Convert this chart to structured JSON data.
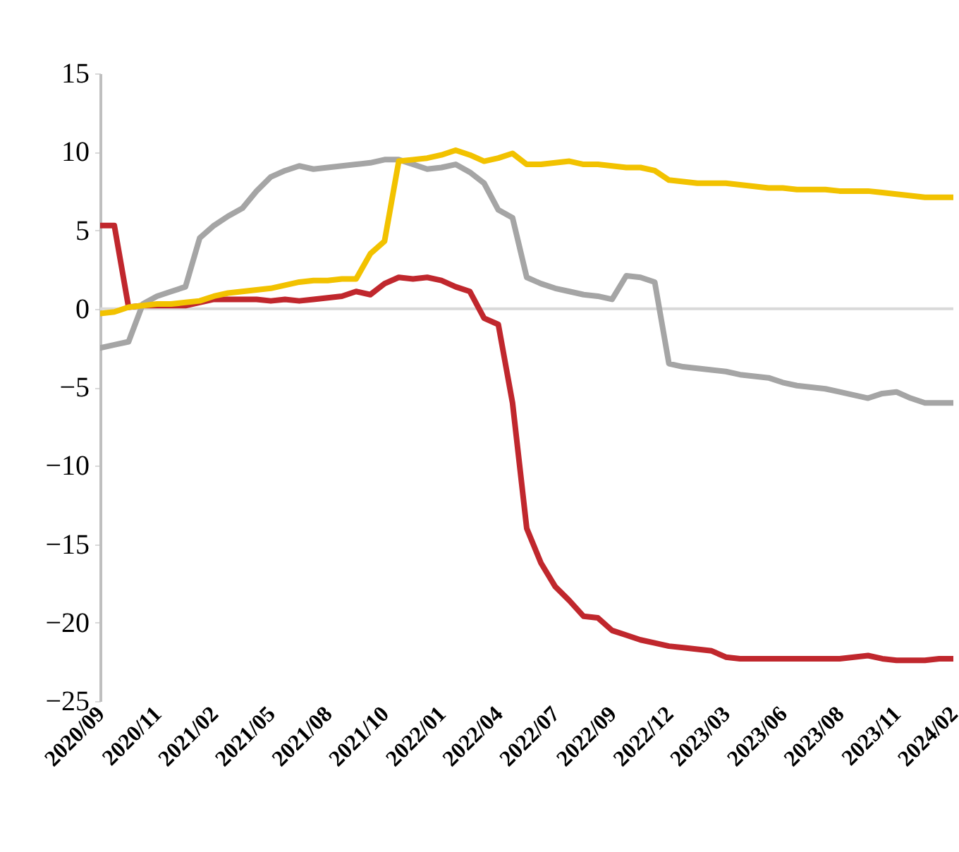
{
  "chart_data": {
    "type": "line",
    "categories": [
      "2020/09",
      null,
      null,
      null,
      "2020/11",
      null,
      null,
      null,
      "2021/02",
      null,
      null,
      null,
      "2021/05",
      null,
      null,
      null,
      "2021/08",
      null,
      null,
      null,
      "2021/10",
      null,
      null,
      null,
      "2022/01",
      null,
      null,
      null,
      "2022/04",
      null,
      null,
      null,
      "2022/07",
      null,
      null,
      null,
      "2022/09",
      null,
      null,
      null,
      "2022/12",
      null,
      null,
      null,
      "2023/03",
      null,
      null,
      null,
      "2023/06",
      null,
      null,
      null,
      "2023/08",
      null,
      null,
      null,
      "2023/11",
      null,
      null,
      null,
      "2024/02"
    ],
    "series": [
      {
        "color": "#c0272d",
        "values": [
          5.3,
          5.3,
          0.1,
          0.2,
          0.2,
          0.2,
          0.2,
          0.4,
          0.6,
          0.6,
          0.6,
          0.6,
          0.5,
          0.6,
          0.5,
          0.6,
          0.7,
          0.8,
          1.1,
          0.9,
          1.6,
          2.0,
          1.9,
          2.0,
          1.8,
          1.4,
          1.1,
          -0.6,
          -1.0,
          -6.0,
          -14.0,
          -16.2,
          -17.7,
          -18.6,
          -19.6,
          -19.7,
          -20.5,
          -20.8,
          -21.1,
          -21.3,
          -21.5,
          -21.6,
          -21.7,
          -21.8,
          -22.2,
          -22.3,
          -22.3,
          -22.3,
          -22.3,
          -22.3,
          -22.3,
          -22.3,
          -22.3,
          -22.2,
          -22.1,
          -22.3,
          -22.4,
          -22.4,
          -22.4,
          -22.3,
          -22.3
        ]
      },
      {
        "color": "#a5a5a5",
        "values": [
          -2.5,
          -2.3,
          -2.1,
          0.3,
          0.8,
          1.1,
          1.4,
          4.5,
          5.3,
          5.9,
          6.4,
          7.5,
          8.4,
          8.8,
          9.1,
          8.9,
          9.0,
          9.1,
          9.2,
          9.3,
          9.5,
          9.5,
          9.2,
          8.9,
          9.0,
          9.2,
          8.7,
          8.0,
          6.3,
          5.8,
          2.0,
          1.6,
          1.3,
          1.1,
          0.9,
          0.8,
          0.6,
          2.1,
          2.0,
          1.7,
          -3.5,
          -3.7,
          -3.8,
          -3.9,
          -4.0,
          -4.2,
          -4.3,
          -4.4,
          -4.7,
          -4.9,
          -5.0,
          -5.1,
          -5.3,
          -5.5,
          -5.7,
          -5.4,
          -5.3,
          -5.7,
          -6.0,
          -6.0,
          -6.0
        ]
      },
      {
        "color": "#f2c200",
        "values": [
          -0.3,
          -0.2,
          0.1,
          0.2,
          0.3,
          0.3,
          0.4,
          0.5,
          0.8,
          1.0,
          1.1,
          1.2,
          1.3,
          1.5,
          1.7,
          1.8,
          1.8,
          1.9,
          1.9,
          3.5,
          4.3,
          9.4,
          9.5,
          9.6,
          9.8,
          10.1,
          9.8,
          9.4,
          9.6,
          9.9,
          9.2,
          9.2,
          9.3,
          9.4,
          9.2,
          9.2,
          9.1,
          9.0,
          9.0,
          8.8,
          8.2,
          8.1,
          8.0,
          8.0,
          8.0,
          7.9,
          7.8,
          7.7,
          7.7,
          7.6,
          7.6,
          7.6,
          7.5,
          7.5,
          7.5,
          7.4,
          7.3,
          7.2,
          7.1,
          7.1,
          7.1
        ]
      }
    ],
    "ylim": [
      -25,
      15
    ],
    "yticks": [
      -25,
      -20,
      -15,
      -10,
      -5,
      0,
      5,
      10,
      15
    ],
    "ref_lines": [
      {
        "axis": "y",
        "value": 0,
        "color": "#d9d9d9"
      }
    ]
  }
}
